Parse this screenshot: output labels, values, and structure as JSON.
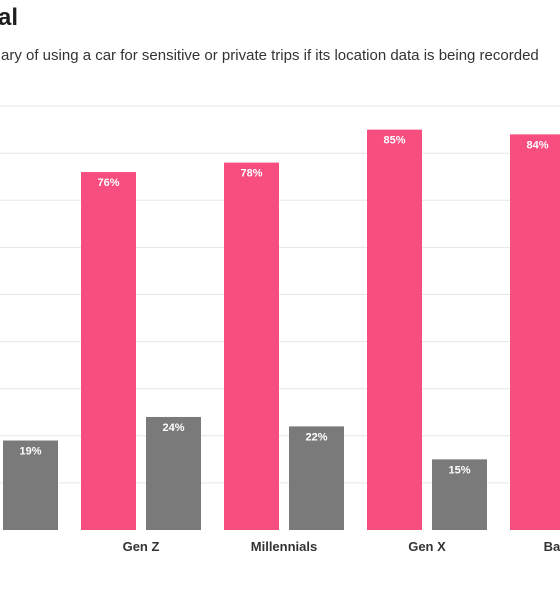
{
  "title": "al",
  "subtitle": "ary of using a car for sensitive or private trips if its location data is being recorded",
  "colors": {
    "wary": "#f74d7f",
    "not_wary": "#7a7a7a",
    "gridline": "#e6e6e6"
  },
  "chart_data": {
    "type": "bar",
    "title": "al",
    "subtitle": "ary of using a car for sensitive or private trips if its location data is being recorded",
    "categories": [
      "",
      "Gen Z",
      "Millennials",
      "Gen X",
      "Baby Bo"
    ],
    "series": [
      {
        "values": [
          null,
          76,
          78,
          85,
          84
        ]
      },
      {
        "values": [
          19,
          24,
          22,
          15,
          null
        ]
      }
    ],
    "value_labels": [
      [
        null,
        "76%",
        "78%",
        "85%",
        "84%"
      ],
      [
        "19%",
        "24%",
        "22%",
        "15%",
        null
      ]
    ],
    "ylim": [
      0,
      90
    ],
    "grid": true,
    "legend": "none",
    "xlabel": "",
    "ylabel": ""
  }
}
